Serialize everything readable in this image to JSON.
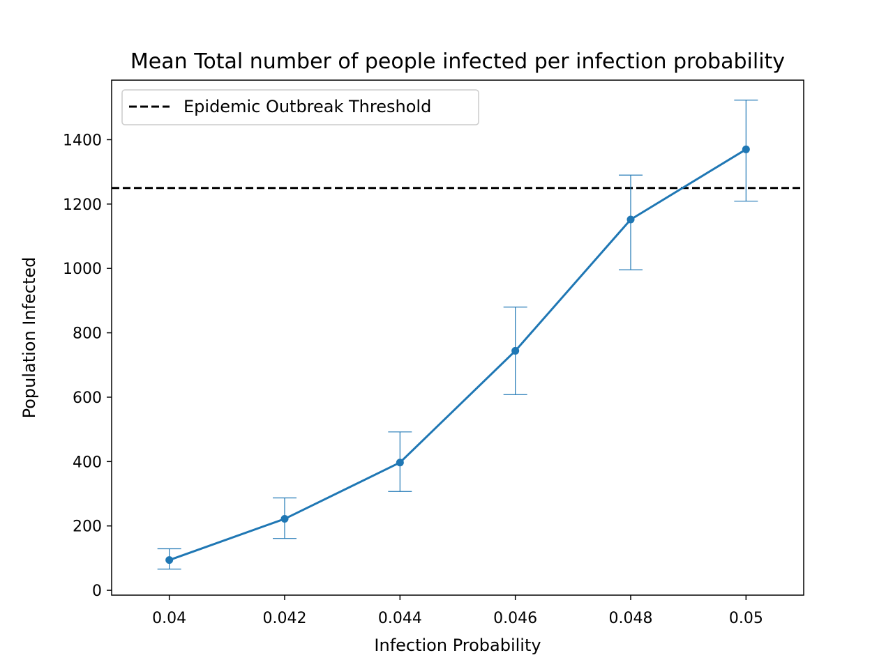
{
  "chart_data": {
    "type": "line",
    "title": "Mean Total number of people infected per infection probability",
    "xlabel": "Infection Probability",
    "ylabel": "Population Infected",
    "xlim": [
      0.039,
      0.051
    ],
    "ylim": [
      -15,
      1585
    ],
    "x_ticks": [
      {
        "value": 0.04,
        "label": "0.04"
      },
      {
        "value": 0.042,
        "label": "0.042"
      },
      {
        "value": 0.044,
        "label": "0.044"
      },
      {
        "value": 0.046,
        "label": "0.046"
      },
      {
        "value": 0.048,
        "label": "0.048"
      },
      {
        "value": 0.05,
        "label": "0.05"
      }
    ],
    "y_ticks": [
      {
        "value": 0,
        "label": "0"
      },
      {
        "value": 200,
        "label": "200"
      },
      {
        "value": 400,
        "label": "400"
      },
      {
        "value": 600,
        "label": "600"
      },
      {
        "value": 800,
        "label": "800"
      },
      {
        "value": 1000,
        "label": "1000"
      },
      {
        "value": 1200,
        "label": "1200"
      },
      {
        "value": 1400,
        "label": "1400"
      }
    ],
    "grid": false,
    "legend_position": "top-left",
    "series": [
      {
        "color": "#1f77b4",
        "x": [
          0.04,
          0.042,
          0.044,
          0.046,
          0.048,
          0.05
        ],
        "y": [
          94,
          222,
          397,
          744,
          1152,
          1370
        ],
        "err_low": [
          66,
          161,
          307,
          608,
          996,
          1209
        ],
        "err_high": [
          129,
          287,
          492,
          880,
          1290,
          1523
        ]
      }
    ],
    "threshold": {
      "name": "Epidemic Outbreak Threshold",
      "value": 1250,
      "color": "#000000",
      "style": "dashed"
    }
  }
}
